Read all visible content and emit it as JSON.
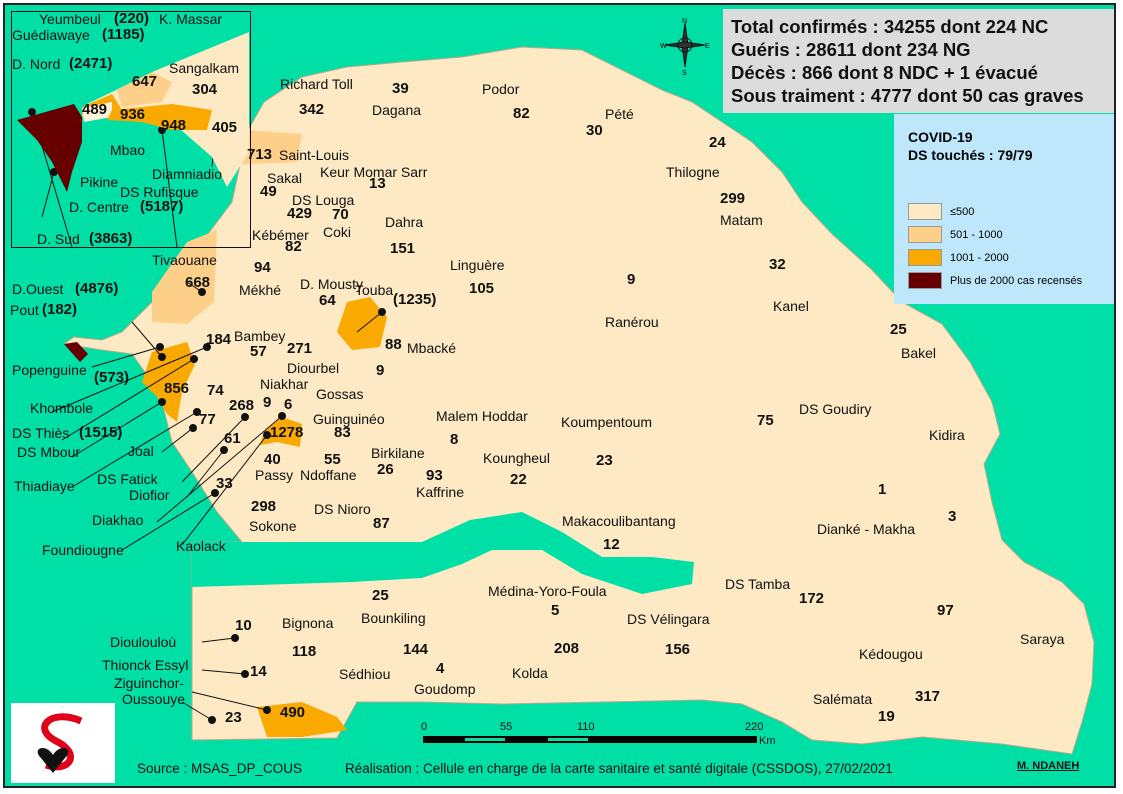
{
  "summary": {
    "confirmed": "Total confirmés : 34255 dont 224 NC",
    "recovered": "Guéris : 28611 dont 234 NG",
    "deaths": "Décès : 866 dont 8 NDC + 1 évacué",
    "treatment": "Sous traiment : 4777 dont 50 cas graves"
  },
  "legend": {
    "title": "COVID-19",
    "subtitle": "DS touchés : 79/79",
    "classes": [
      {
        "label": "≤500",
        "color": "#fde9c4"
      },
      {
        "label": "501 - 1000",
        "color": "#fdcf88"
      },
      {
        "label": "1001 - 2000",
        "color": "#f9a900"
      },
      {
        "label": "Plus de 2000 cas recensés",
        "color": "#660000"
      }
    ]
  },
  "colors": {
    "ocean": "#00dfa6",
    "land": "#fde9c4"
  },
  "districts": [
    {
      "name": "Yeumbeul",
      "cases": "(220)"
    },
    {
      "name": "Guédiawaye",
      "cases": "(1185)"
    },
    {
      "name": "K. Massar",
      "cases": "647"
    },
    {
      "name": "D. Nord",
      "cases": "(2471)"
    },
    {
      "name": "Sangalkam",
      "cases": "304"
    },
    {
      "name": "Pikine",
      "cases": "489"
    },
    {
      "name": "Mbao",
      "cases": "936"
    },
    {
      "name": "DS Rufisque",
      "cases": "948"
    },
    {
      "name": "Diamniadio",
      "cases": "405"
    },
    {
      "name": "D. Centre",
      "cases": "(5187)"
    },
    {
      "name": "D. Sud",
      "cases": "(3863)"
    },
    {
      "name": "D.Ouest",
      "cases": "(4876)"
    },
    {
      "name": "Richard Toll",
      "cases": "342"
    },
    {
      "name": "Dagana",
      "cases": "39"
    },
    {
      "name": "Podor",
      "cases": "82"
    },
    {
      "name": "Pété",
      "cases": "30"
    },
    {
      "name": "Thilogne",
      "cases": "24"
    },
    {
      "name": "Saint-Louis",
      "cases": "713"
    },
    {
      "name": "Sakal",
      "cases": "49"
    },
    {
      "name": "Keur Momar Sarr",
      "cases": "13"
    },
    {
      "name": "Matam",
      "cases": "299"
    },
    {
      "name": "DS Louga",
      "cases": "429"
    },
    {
      "name": "Coki",
      "cases": "70"
    },
    {
      "name": "Dahra",
      "cases": "151"
    },
    {
      "name": "Kébémer",
      "cases": "82"
    },
    {
      "name": "Tivaouane",
      "cases": "668"
    },
    {
      "name": "Mékhé",
      "cases": "94"
    },
    {
      "name": "D. Mousty",
      "cases": "64"
    },
    {
      "name": "Touba",
      "cases": "(1235)"
    },
    {
      "name": "Linguère",
      "cases": "105"
    },
    {
      "name": "Ranérou",
      "cases": "9"
    },
    {
      "name": "Kanel",
      "cases": "32"
    },
    {
      "name": "Bakel",
      "cases": "25"
    },
    {
      "name": "Pout",
      "cases": "(182)"
    },
    {
      "name": "Bambey",
      "cases": "57"
    },
    {
      "name": "Diourbel",
      "cases": "271"
    },
    {
      "name": "Mbacké",
      "cases": "88"
    },
    {
      "name": "Popenguine",
      "cases": "(573)"
    },
    {
      "name": "Khombole",
      "cases": "184"
    },
    {
      "name": "DS Mbour",
      "cases": "856"
    },
    {
      "name": "DS Thiès",
      "cases": "(1515)"
    },
    {
      "name": "Thiadiaye",
      "cases": "74"
    },
    {
      "name": "Joal",
      "cases": "77"
    },
    {
      "name": "DS Fatick",
      "cases": "268"
    },
    {
      "name": "Diofior",
      "cases": "61"
    },
    {
      "name": "Niakhar",
      "cases": "9"
    },
    {
      "name": "Diakhao",
      "cases": "6"
    },
    {
      "name": "Foundiougne",
      "cases": "33"
    },
    {
      "name": "Kaolack",
      "cases": "1278"
    },
    {
      "name": "Gossas",
      "cases": "9"
    },
    {
      "name": "Guinguinéo",
      "cases": "83"
    },
    {
      "name": "Passy",
      "cases": "40"
    },
    {
      "name": "Ndoffane",
      "cases": "55"
    },
    {
      "name": "Birkilane",
      "cases": "26"
    },
    {
      "name": "Kaffrine",
      "cases": "93"
    },
    {
      "name": "Malem Hoddar",
      "cases": "8"
    },
    {
      "name": "Koungheul",
      "cases": "22"
    },
    {
      "name": "Koumpentoum",
      "cases": "23"
    },
    {
      "name": "DS Goudiry",
      "cases": "75"
    },
    {
      "name": "Kidira",
      "cases": "3"
    },
    {
      "name": "Dianké - Makha",
      "cases": "1"
    },
    {
      "name": "Sokone",
      "cases": "298"
    },
    {
      "name": "DS Nioro",
      "cases": "87"
    },
    {
      "name": "Makacoulibantang",
      "cases": "12"
    },
    {
      "name": "Bounkiling",
      "cases": "25"
    },
    {
      "name": "Médina-Yoro-Foula",
      "cases": "5"
    },
    {
      "name": "DS Tamba",
      "cases": "172"
    },
    {
      "name": "DS Vélingara",
      "cases": "156"
    },
    {
      "name": "Saraya",
      "cases": "97"
    },
    {
      "name": "Dioulouloù",
      "cases": "10"
    },
    {
      "name": "Bignona",
      "cases": "118"
    },
    {
      "name": "Sédhiou",
      "cases": "144"
    },
    {
      "name": "Goudomp",
      "cases": "4"
    },
    {
      "name": "Kolda",
      "cases": "208"
    },
    {
      "name": "Kédougou",
      "cases": "317"
    },
    {
      "name": "Salémata",
      "cases": "19"
    },
    {
      "name": "Thionck Essyl",
      "cases": "14"
    },
    {
      "name": "Ziguinchor-",
      "cases": "490"
    },
    {
      "name": "Oussouye",
      "cases": "23"
    }
  ],
  "scale_bar": {
    "ticks": [
      "0",
      "55",
      "110",
      "220"
    ],
    "unit": "Km"
  },
  "compass": {
    "n": "N",
    "s": "S",
    "e": "E",
    "w": "W"
  },
  "footer": {
    "source": "Source : MSAS_DP_COUS",
    "credit": "Réalisation : Cellule en charge de la carte sanitaire et santé digitale (CSSDOS), 27/02/2021",
    "author": "M. NDANEH"
  }
}
